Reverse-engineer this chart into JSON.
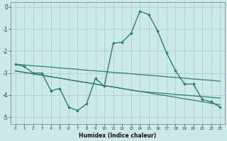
{
  "xlabel": "Humidex (Indice chaleur)",
  "bg_color": "#cce9e9",
  "line_color": "#2e7d6e",
  "grid_color": "#aacfcf",
  "x": [
    0,
    1,
    2,
    3,
    4,
    5,
    6,
    7,
    8,
    9,
    10,
    11,
    12,
    13,
    14,
    15,
    16,
    17,
    18,
    19,
    20,
    21,
    22,
    23
  ],
  "series1": [
    -2.6,
    -2.7,
    -3.0,
    -3.0,
    -3.8,
    -3.7,
    -4.55,
    -4.7,
    -4.4,
    -3.25,
    -3.6,
    -1.65,
    -1.6,
    -1.2,
    -0.2,
    -0.35,
    -1.1,
    -2.1,
    -2.9,
    -3.5,
    -3.5,
    -4.2,
    -4.3,
    -4.55
  ],
  "line_a": [
    -2.6,
    -2.63,
    -2.67,
    -2.7,
    -2.73,
    -2.77,
    -2.8,
    -2.83,
    -2.87,
    -2.9,
    -2.93,
    -2.97,
    -3.0,
    -3.03,
    -3.07,
    -3.1,
    -3.13,
    -3.17,
    -3.2,
    -3.23,
    -3.27,
    -3.3,
    -3.33,
    -3.37
  ],
  "line_b": [
    -2.9,
    -2.97,
    -3.03,
    -3.1,
    -3.17,
    -3.23,
    -3.3,
    -3.37,
    -3.43,
    -3.5,
    -3.57,
    -3.63,
    -3.7,
    -3.77,
    -3.83,
    -3.87,
    -3.9,
    -3.93,
    -3.97,
    -4.0,
    -4.03,
    -4.07,
    -4.1,
    -4.13
  ],
  "line_c": [
    -2.9,
    -2.97,
    -3.03,
    -3.1,
    -3.17,
    -3.23,
    -3.3,
    -3.37,
    -3.43,
    -3.5,
    -3.57,
    -3.63,
    -3.7,
    -3.77,
    -3.83,
    -3.9,
    -3.97,
    -4.03,
    -4.1,
    -4.17,
    -4.23,
    -4.3,
    -4.37,
    -4.43
  ],
  "ylim": [
    -5.3,
    0.2
  ],
  "xlim": [
    -0.5,
    23.5
  ],
  "yticks": [
    0,
    -1,
    -2,
    -3,
    -4,
    -5
  ],
  "ytick_labels": [
    "0",
    "-1",
    "-2",
    "-3",
    "-4",
    "-5"
  ]
}
